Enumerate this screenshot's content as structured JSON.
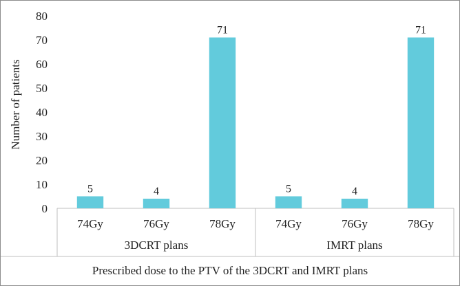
{
  "chart_data": {
    "type": "bar",
    "ylabel": "Number of patients",
    "xlabel": "Prescribed dose to the PTV of the 3DCRT and IMRT plans",
    "ylim": [
      0,
      80
    ],
    "yticks": [
      0,
      10,
      20,
      30,
      40,
      50,
      60,
      70,
      80
    ],
    "grid": false,
    "legend": "none",
    "groups": [
      {
        "label": "3DCRT plans",
        "categories": [
          "74Gy",
          "76Gy",
          "78Gy"
        ],
        "values": [
          5,
          4,
          71
        ]
      },
      {
        "label": "IMRT plans",
        "categories": [
          "74Gy",
          "76Gy",
          "78Gy"
        ],
        "values": [
          5,
          4,
          71
        ]
      }
    ],
    "colors": {
      "bar": "#62cbdc",
      "axis": "#bfbfbf",
      "text": "#222222"
    }
  }
}
